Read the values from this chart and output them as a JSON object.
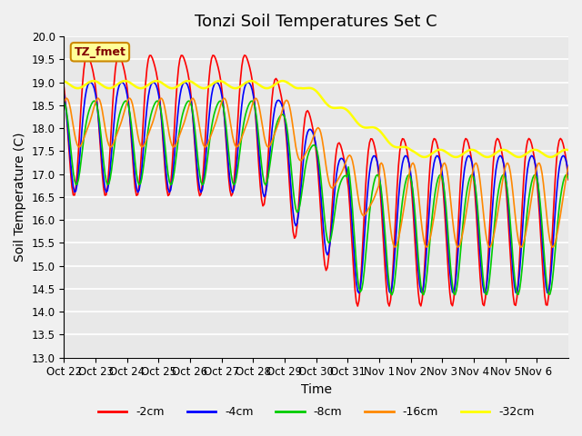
{
  "title": "Tonzi Soil Temperatures Set C",
  "xlabel": "Time",
  "ylabel": "Soil Temperature (C)",
  "ylim": [
    13.0,
    20.0
  ],
  "yticks": [
    13.0,
    13.5,
    14.0,
    14.5,
    15.0,
    15.5,
    16.0,
    16.5,
    17.0,
    17.5,
    18.0,
    18.5,
    19.0,
    19.5,
    20.0
  ],
  "xtick_labels": [
    "Oct 22",
    "Oct 23",
    "Oct 24",
    "Oct 25",
    "Oct 26",
    "Oct 27",
    "Oct 28",
    "Oct 29",
    "Oct 30",
    "Oct 31",
    "Nov 1",
    "Nov 2",
    "Nov 3",
    "Nov 4",
    "Nov 5",
    "Nov 6"
  ],
  "colors": {
    "-2cm": "#ff0000",
    "-4cm": "#0000ff",
    "-8cm": "#00cc00",
    "-16cm": "#ff8800",
    "-32cm": "#ffff00"
  },
  "legend_label": "TZ_fmet",
  "legend_box_color": "#ffff99",
  "legend_box_edge": "#cc8800",
  "plot_bg_color": "#e8e8e8",
  "fig_bg_color": "#f0f0f0",
  "grid_color": "#ffffff",
  "title_fontsize": 13,
  "axis_fontsize": 10,
  "tick_fontsize": 8.5
}
